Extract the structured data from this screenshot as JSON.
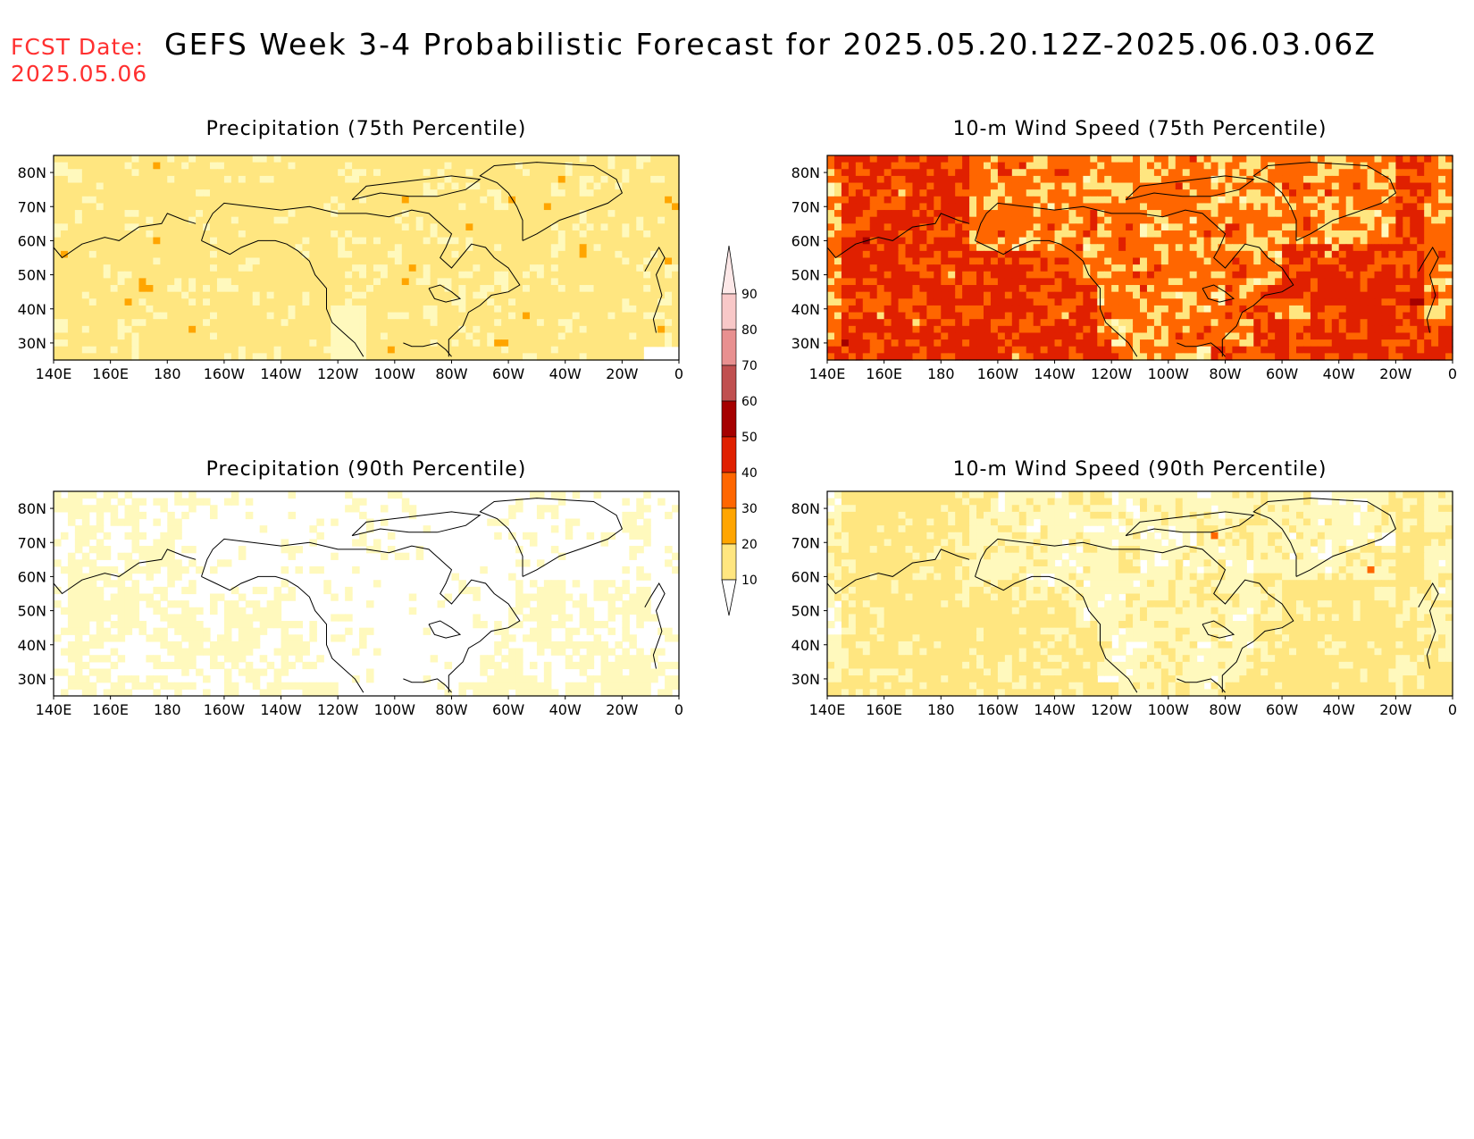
{
  "header": {
    "fcst_label": "FCST Date:",
    "fcst_date": "2025.05.06",
    "title": "GEFS Week 3-4 Probabilistic Forecast for 2025.05.20.12Z-2025.06.03.06Z"
  },
  "axes": {
    "lon_ticks": [
      "140E",
      "160E",
      "180",
      "160W",
      "140W",
      "120W",
      "100W",
      "80W",
      "60W",
      "40W",
      "20W",
      "0"
    ],
    "lat_ticks": [
      "80N",
      "70N",
      "60N",
      "50N",
      "40N",
      "30N"
    ]
  },
  "panels": [
    {
      "title": "Precipitation (75th Percentile)",
      "field": "precip-75",
      "level_class": 1
    },
    {
      "title": "10-m Wind Speed (75th Percentile)",
      "field": "wind-75",
      "level_class": 4
    },
    {
      "title": "Precipitation (90th Percentile)",
      "field": "precip-90",
      "level_class": 0
    },
    {
      "title": "10-m Wind Speed (90th Percentile)",
      "field": "wind-90",
      "level_class": 2
    }
  ],
  "colorbar": {
    "levels": [
      "10",
      "20",
      "30",
      "40",
      "50",
      "60",
      "70",
      "80",
      "90"
    ],
    "colors": [
      "#fff9bd",
      "#ffe680",
      "#ffa500",
      "#ff6600",
      "#e02000",
      "#a50000",
      "#c05050",
      "#e89090",
      "#f8c8c8",
      "#fde8e8"
    ]
  }
}
